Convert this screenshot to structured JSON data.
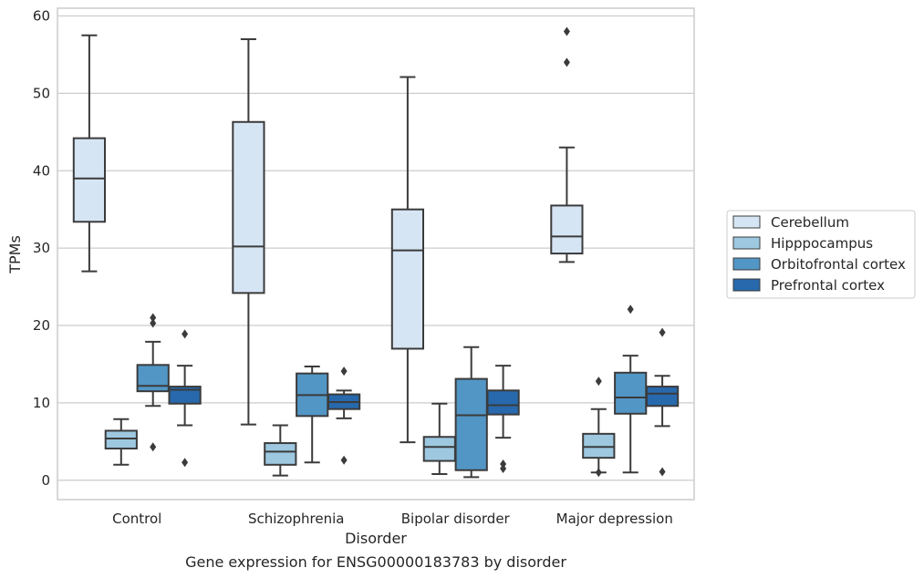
{
  "chart_data": {
    "type": "boxplot",
    "caption": "Gene expression for ENSG00000183783 by disorder",
    "xlabel": "Disorder",
    "ylabel": "TPMs",
    "ylim": [
      -2.5,
      61
    ],
    "yticks": [
      0,
      10,
      20,
      30,
      40,
      50,
      60
    ],
    "grid": true,
    "legend_position": "right",
    "categories": [
      "Control",
      "Schizophrenia",
      "Bipolar disorder",
      "Major depression"
    ],
    "series": [
      {
        "name": "Cerebellum",
        "color": "#d6e5f4",
        "boxes": [
          {
            "whislo": 27.0,
            "q1": 33.4,
            "med": 39.0,
            "q3": 44.2,
            "whishi": 57.5,
            "fliers": []
          },
          {
            "whislo": 7.2,
            "q1": 24.2,
            "med": 30.2,
            "q3": 46.3,
            "whishi": 57.0,
            "fliers": []
          },
          {
            "whislo": 4.9,
            "q1": 17.0,
            "med": 29.7,
            "q3": 35.0,
            "whishi": 52.1,
            "fliers": []
          },
          {
            "whislo": 28.2,
            "q1": 29.3,
            "med": 31.5,
            "q3": 35.5,
            "whishi": 43.0,
            "fliers": [
              54.0,
              58.0
            ]
          }
        ]
      },
      {
        "name": "Hipppocampus",
        "color": "#9dc8e0",
        "boxes": [
          {
            "whislo": 2.0,
            "q1": 4.1,
            "med": 5.4,
            "q3": 6.4,
            "whishi": 7.9,
            "fliers": []
          },
          {
            "whislo": 0.6,
            "q1": 2.0,
            "med": 3.7,
            "q3": 4.8,
            "whishi": 7.1,
            "fliers": []
          },
          {
            "whislo": 0.8,
            "q1": 2.5,
            "med": 4.3,
            "q3": 5.6,
            "whishi": 9.9,
            "fliers": []
          },
          {
            "whislo": 1.0,
            "q1": 2.9,
            "med": 4.3,
            "q3": 6.0,
            "whishi": 9.2,
            "fliers": [
              1.0,
              12.8
            ]
          }
        ]
      },
      {
        "name": "Orbitofrontal cortex",
        "color": "#5296c5",
        "boxes": [
          {
            "whislo": 9.6,
            "q1": 11.5,
            "med": 12.2,
            "q3": 14.9,
            "whishi": 17.9,
            "fliers": [
              4.3,
              20.3,
              21.0
            ]
          },
          {
            "whislo": 2.3,
            "q1": 8.3,
            "med": 11.0,
            "q3": 13.8,
            "whishi": 14.7,
            "fliers": []
          },
          {
            "whislo": 0.4,
            "q1": 1.3,
            "med": 8.4,
            "q3": 13.1,
            "whishi": 17.2,
            "fliers": []
          },
          {
            "whislo": 1.0,
            "q1": 8.6,
            "med": 10.7,
            "q3": 13.9,
            "whishi": 16.1,
            "fliers": [
              22.1
            ]
          }
        ]
      },
      {
        "name": "Prefrontal cortex",
        "color": "#2769ac",
        "boxes": [
          {
            "whislo": 7.1,
            "q1": 9.9,
            "med": 11.7,
            "q3": 12.1,
            "whishi": 14.8,
            "fliers": [
              2.3,
              18.9
            ]
          },
          {
            "whislo": 8.0,
            "q1": 9.2,
            "med": 10.1,
            "q3": 11.1,
            "whishi": 11.6,
            "fliers": [
              2.6,
              14.1
            ]
          },
          {
            "whislo": 5.5,
            "q1": 8.5,
            "med": 9.7,
            "q3": 11.6,
            "whishi": 14.8,
            "fliers": [
              1.5,
              2.1
            ]
          },
          {
            "whislo": 7.0,
            "q1": 9.6,
            "med": 11.2,
            "q3": 12.1,
            "whishi": 13.5,
            "fliers": [
              1.1,
              19.1
            ]
          }
        ]
      }
    ]
  }
}
